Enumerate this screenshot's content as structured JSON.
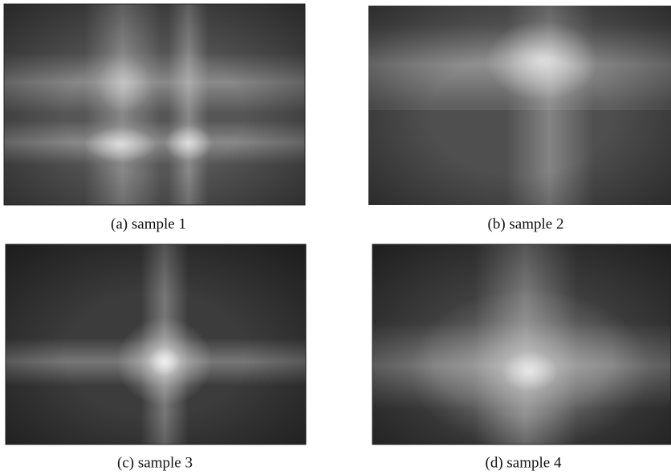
{
  "panels": [
    {
      "caption": "(a) sample 1"
    },
    {
      "caption": "(b) sample 2"
    },
    {
      "caption": "(c) sample 3"
    },
    {
      "caption": "(d) sample 4"
    }
  ]
}
